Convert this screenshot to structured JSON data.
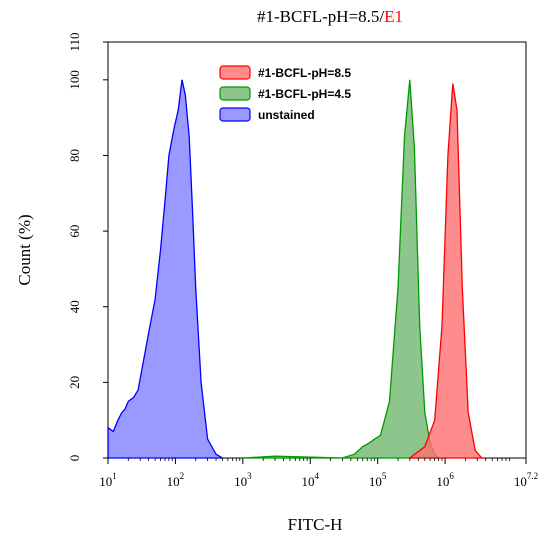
{
  "chart_data": {
    "type": "area",
    "title_main": "#1-BCFL-pH=8.5/",
    "title_highlight": "E1",
    "title_highlight_color": "#ff0000",
    "xlabel": "FITC-H",
    "ylabel": "Count (%)",
    "x_scale": "log",
    "xlim": [
      10,
      15848932
    ],
    "ylim": [
      0,
      110
    ],
    "x_ticks": [
      {
        "value": 10,
        "base": "10",
        "exp": "1"
      },
      {
        "value": 100,
        "base": "10",
        "exp": "2"
      },
      {
        "value": 1000,
        "base": "10",
        "exp": "3"
      },
      {
        "value": 10000,
        "base": "10",
        "exp": "4"
      },
      {
        "value": 100000,
        "base": "10",
        "exp": "5"
      },
      {
        "value": 1000000,
        "base": "10",
        "exp": "6"
      },
      {
        "value": 15848932,
        "base": "10",
        "exp": "7.2"
      }
    ],
    "y_ticks": [
      0,
      20,
      40,
      60,
      80,
      100,
      110
    ],
    "y_tick_labels": [
      "0",
      "20",
      "40",
      "60",
      "80",
      "100",
      "110"
    ],
    "legend_position": "top-center",
    "series": [
      {
        "name": "#1-BCFL-pH=8.5",
        "fill": "#ff6f6f",
        "stroke": "#ff0000",
        "x": [
          300000,
          500000,
          700000,
          900000,
          1100000,
          1300000,
          1500000,
          1800000,
          2200000,
          2800000,
          3500000
        ],
        "y": [
          0,
          3,
          10,
          35,
          80,
          99,
          92,
          45,
          12,
          2,
          0
        ]
      },
      {
        "name": "#1-BCFL-pH=4.5",
        "fill": "#6fb86f",
        "stroke": "#009900",
        "x": [
          1000,
          3000,
          30000,
          45000,
          60000,
          75000,
          90000,
          110000,
          150000,
          200000,
          250000,
          300000,
          350000,
          420000,
          500000,
          600000,
          700000,
          800000
        ],
        "y": [
          0,
          0.5,
          0,
          1,
          3,
          4,
          5,
          6,
          15,
          45,
          85,
          100,
          82,
          35,
          12,
          4,
          1,
          0
        ]
      },
      {
        "name": "unstained",
        "fill": "#7f7fff",
        "stroke": "#0000ff",
        "x": [
          10,
          12,
          14,
          16,
          18,
          20,
          24,
          28,
          33,
          40,
          50,
          60,
          70,
          80,
          95,
          110,
          125,
          140,
          160,
          180,
          200,
          240,
          300,
          400,
          500
        ],
        "y": [
          8,
          7,
          10,
          12,
          13,
          15,
          16,
          18,
          25,
          33,
          42,
          55,
          68,
          80,
          87,
          92,
          100,
          96,
          85,
          65,
          45,
          20,
          5,
          1,
          0
        ]
      }
    ]
  }
}
